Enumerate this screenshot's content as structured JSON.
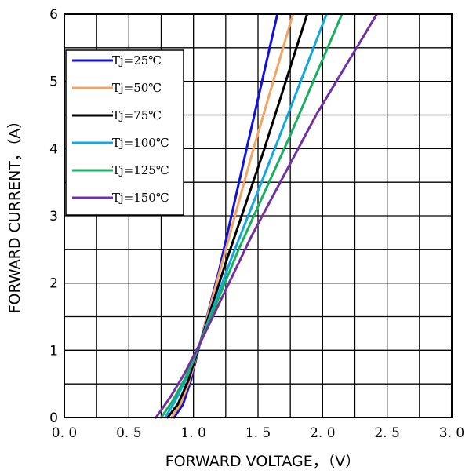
{
  "chart_data": {
    "type": "line",
    "xlabel": "FORWARD VOLTAGE，（V）",
    "ylabel": "FORWARD CURRENT，（A）",
    "xlim": [
      0,
      3.0
    ],
    "ylim": [
      0,
      6
    ],
    "x_ticks": [
      "0. 0",
      "0. 5",
      "1. 0",
      "1. 5",
      "2. 0",
      "2. 5",
      "3. 0"
    ],
    "y_ticks": [
      "0",
      "1",
      "2",
      "3",
      "4",
      "5",
      "6"
    ],
    "grid": true,
    "legend_position": "top-left",
    "series": [
      {
        "name": "Tj=25℃",
        "color": "#1010e0",
        "points": [
          [
            0.85,
            0.0
          ],
          [
            0.92,
            0.2
          ],
          [
            0.98,
            0.55
          ],
          [
            1.05,
            1.1
          ],
          [
            1.2,
            2.2
          ],
          [
            1.4,
            3.9
          ],
          [
            1.65,
            6.0
          ]
        ]
      },
      {
        "name": "Tj=50℃",
        "color": "#f4a460",
        "points": [
          [
            0.83,
            0.0
          ],
          [
            0.9,
            0.2
          ],
          [
            0.97,
            0.55
          ],
          [
            1.05,
            1.1
          ],
          [
            1.2,
            2.15
          ],
          [
            1.45,
            3.9
          ],
          [
            1.77,
            6.0
          ]
        ]
      },
      {
        "name": "Tj=75℃",
        "color": "#000000",
        "points": [
          [
            0.8,
            0.0
          ],
          [
            0.88,
            0.2
          ],
          [
            0.96,
            0.55
          ],
          [
            1.05,
            1.1
          ],
          [
            1.25,
            2.3
          ],
          [
            1.55,
            4.0
          ],
          [
            1.88,
            6.0
          ]
        ]
      },
      {
        "name": "Tj=100℃",
        "color": "#10a8e0",
        "points": [
          [
            0.78,
            0.0
          ],
          [
            0.86,
            0.25
          ],
          [
            0.95,
            0.6
          ],
          [
            1.05,
            1.1
          ],
          [
            1.3,
            2.4
          ],
          [
            1.65,
            4.1
          ],
          [
            2.03,
            6.0
          ]
        ]
      },
      {
        "name": "Tj=125℃",
        "color": "#18b060",
        "points": [
          [
            0.75,
            0.0
          ],
          [
            0.84,
            0.25
          ],
          [
            0.94,
            0.6
          ],
          [
            1.05,
            1.1
          ],
          [
            1.35,
            2.5
          ],
          [
            1.75,
            4.2
          ],
          [
            2.15,
            6.0
          ]
        ]
      },
      {
        "name": "Tj=150℃",
        "color": "#7030a0",
        "points": [
          [
            0.71,
            0.0
          ],
          [
            0.82,
            0.3
          ],
          [
            0.93,
            0.65
          ],
          [
            1.05,
            1.1
          ],
          [
            1.45,
            2.7
          ],
          [
            1.95,
            4.5
          ],
          [
            2.42,
            6.0
          ]
        ]
      }
    ]
  }
}
